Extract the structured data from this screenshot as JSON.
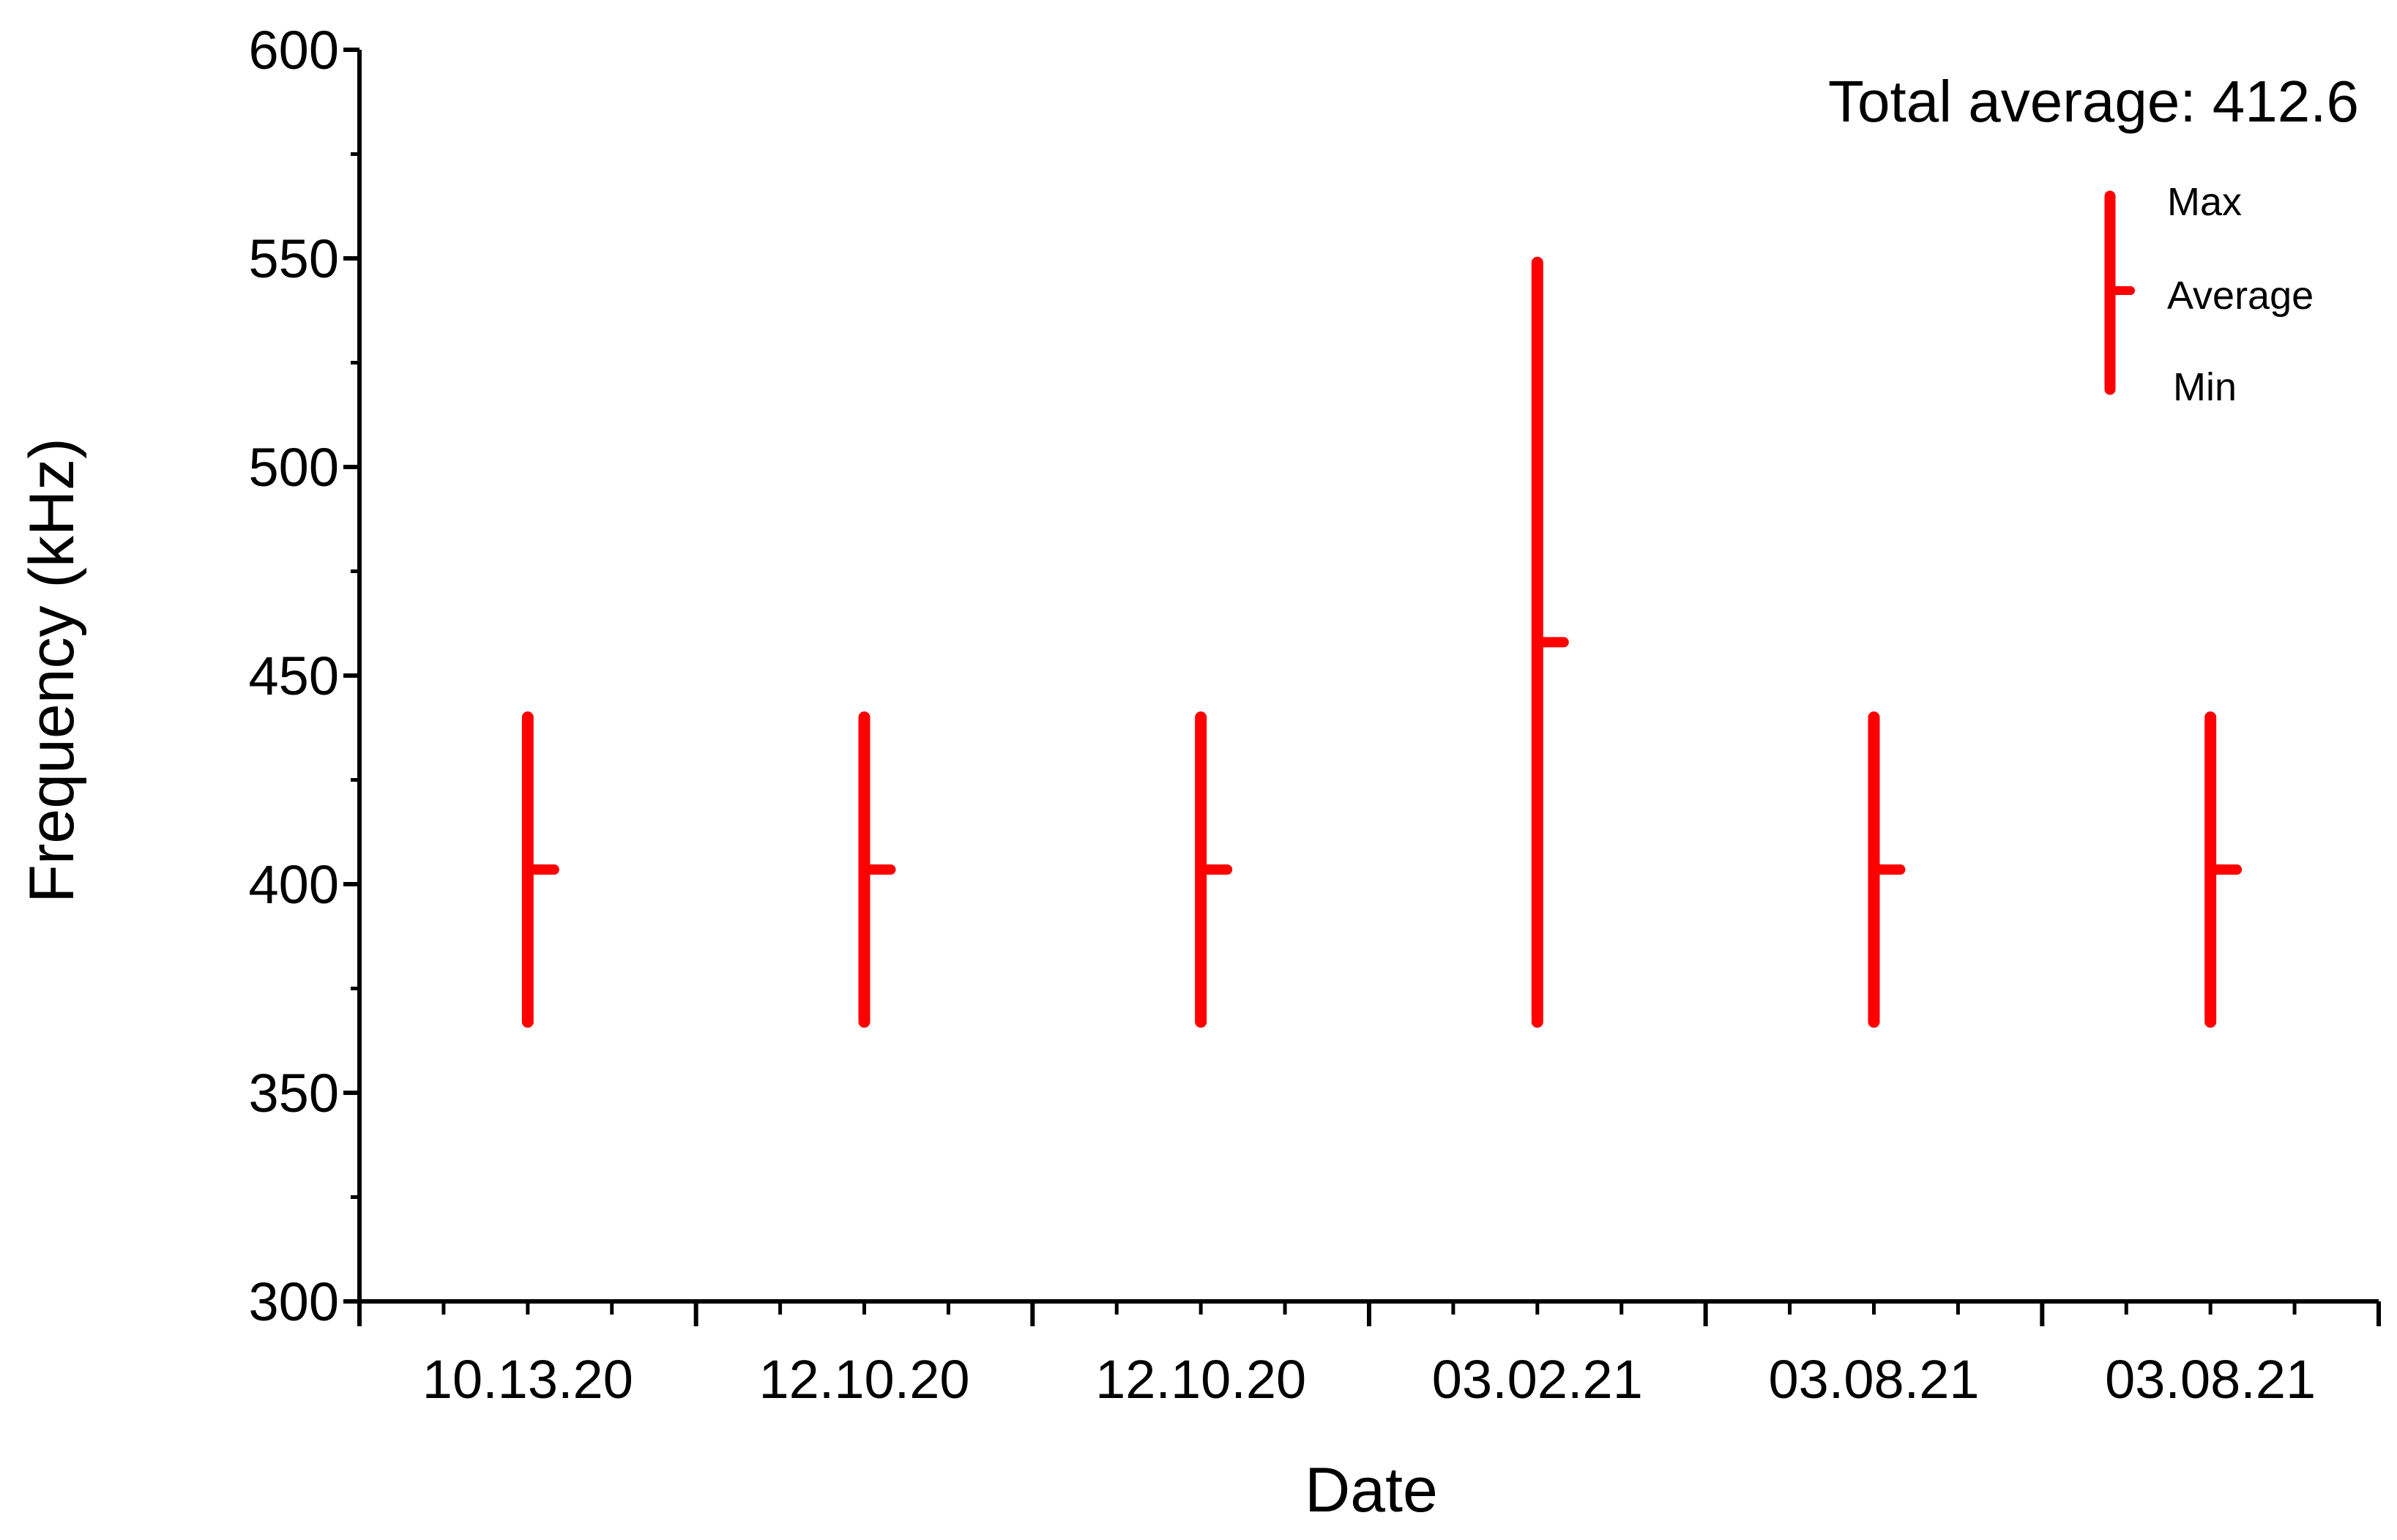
{
  "chart_data": {
    "type": "hi-lo-average",
    "xlabel": "Date",
    "ylabel": "Frequency (kHz)",
    "ylim": [
      300,
      600
    ],
    "y_major_ticks": [
      300,
      350,
      400,
      450,
      500,
      550,
      600
    ],
    "y_tick_labels": [
      "300",
      "350",
      "400",
      "450",
      "500",
      "550",
      "600"
    ],
    "categories": [
      "10.13.20",
      "12.10.20",
      "12.10.20",
      "03.02.21",
      "03.08.21",
      "03.08.21"
    ],
    "max": [
      440,
      440,
      440,
      549,
      440,
      440
    ],
    "min": [
      367,
      367,
      367,
      367,
      367,
      367
    ],
    "average": [
      403.5,
      403.5,
      403.5,
      458,
      403.5,
      403.5
    ],
    "annotation": "Total average: 412.6",
    "legend": {
      "position": "top-right",
      "max_label": "Max",
      "average_label": "Average",
      "min_label": "Min"
    },
    "series_color": "#ff0000",
    "grid": false
  }
}
